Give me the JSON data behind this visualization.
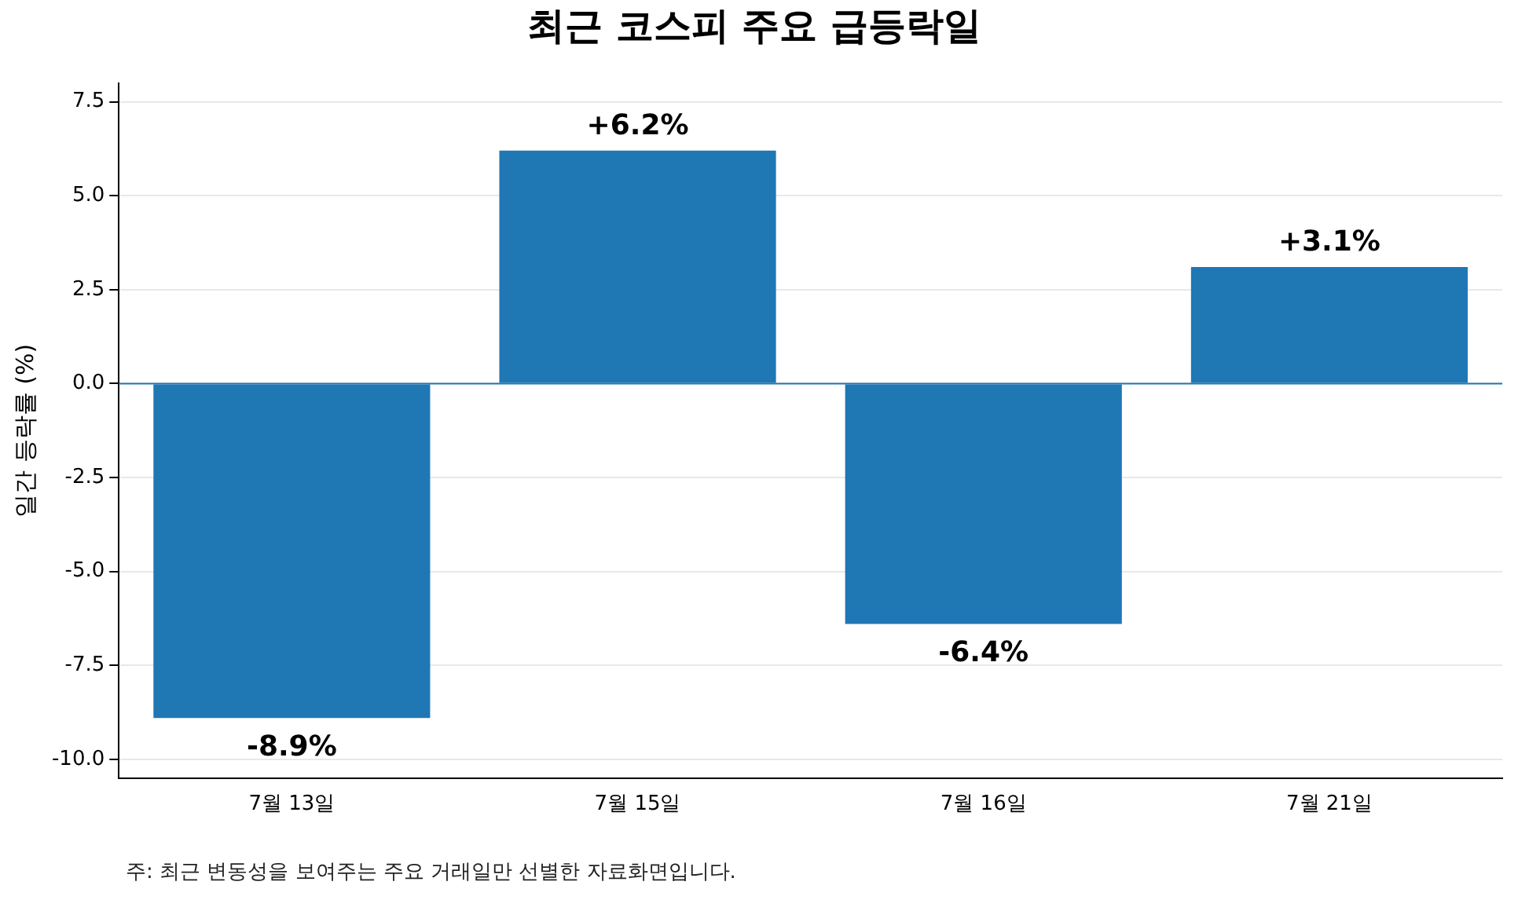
{
  "chart_data": {
    "type": "bar",
    "title": "최근 코스피 주요 급등락일",
    "ylabel": "일간 등락률 (%)",
    "categories": [
      "7월 13일",
      "7월 15일",
      "7월 16일",
      "7월 21일"
    ],
    "values": [
      -8.9,
      6.2,
      -6.4,
      3.1
    ],
    "value_labels": [
      "-8.9%",
      "+6.2%",
      "-6.4%",
      "+3.1%"
    ],
    "color": "#1f77b4",
    "ylim": [
      -10.5,
      8.0
    ],
    "yticks": [
      {
        "value": -10,
        "label": "-10.0"
      },
      {
        "value": -7.5,
        "label": "-7.5"
      },
      {
        "value": -5,
        "label": "-5.0"
      },
      {
        "value": -2.5,
        "label": "-2.5"
      },
      {
        "value": 0,
        "label": "0.0"
      },
      {
        "value": 2.5,
        "label": "2.5"
      },
      {
        "value": 5,
        "label": "5.0"
      },
      {
        "value": 7.5,
        "label": "7.5"
      }
    ],
    "ref_lines": [
      {
        "axis": "y",
        "value": 0,
        "color": "#1f77b4"
      }
    ],
    "grid": "y",
    "legend": false,
    "annotations": [
      "주: 최근 변동성을 보여주는 주요 거래일만 선별한 자료화면입니다."
    ]
  }
}
